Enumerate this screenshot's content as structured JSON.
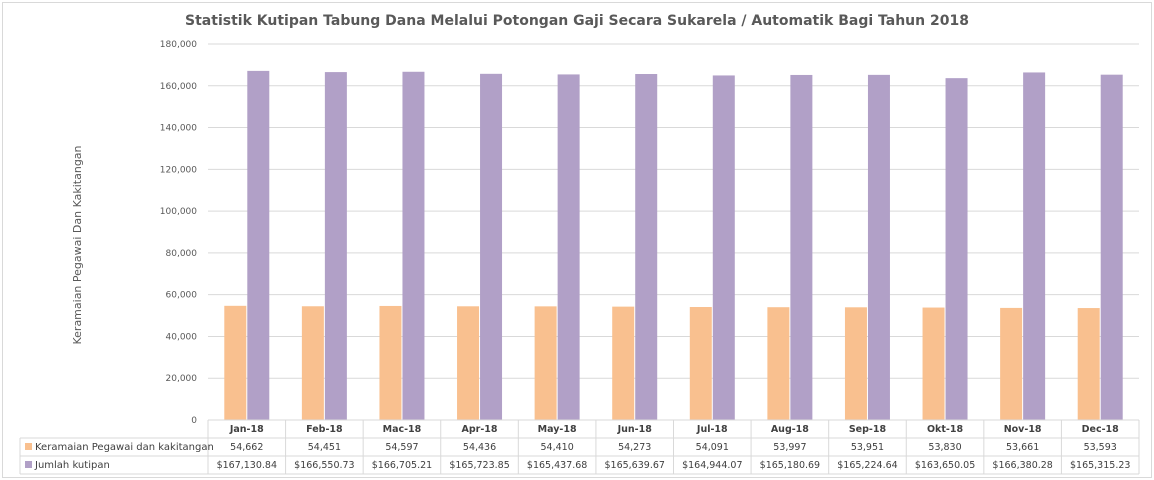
{
  "chart_data": {
    "type": "bar",
    "title": "Statistik Kutipan Tabung Dana Melalui Potongan Gaji Secara Sukarela / Automatik Bagi Tahun 2018",
    "ylabel": "Keramaian Pegawai Dan Kakitangan",
    "xlabel": "",
    "ylim": [
      0,
      180000
    ],
    "yticks": [
      0,
      20000,
      40000,
      60000,
      80000,
      100000,
      120000,
      140000,
      160000,
      180000
    ],
    "ytick_labels": [
      "0",
      "20,000",
      "40,000",
      "60,000",
      "80,000",
      "100,000",
      "120,000",
      "140,000",
      "160,000",
      "180,000"
    ],
    "grid": true,
    "legend": "data-table",
    "categories": [
      "Jan-18",
      "Feb-18",
      "Mac-18",
      "Apr-18",
      "May-18",
      "Jun-18",
      "Jul-18",
      "Aug-18",
      "Sep-18",
      "Okt-18",
      "Nov-18",
      "Dec-18"
    ],
    "series": [
      {
        "name": "Keramaian Pegawai dan kakitangan",
        "color": "#f9c08f",
        "values": [
          54662,
          54451,
          54597,
          54436,
          54410,
          54273,
          54091,
          53997,
          53951,
          53830,
          53661,
          53593
        ],
        "labels": [
          "54,662",
          "54,451",
          "54,597",
          "54,436",
          "54,410",
          "54,273",
          "54,091",
          "53,997",
          "53,951",
          "53,830",
          "53,661",
          "53,593"
        ]
      },
      {
        "name": "Jumlah kutipan",
        "color": "#b1a0c7",
        "values": [
          167130.84,
          166550.73,
          166705.21,
          165723.85,
          165437.68,
          165639.67,
          164944.07,
          165180.69,
          165224.64,
          163650.05,
          166380.28,
          165315.23
        ],
        "labels": [
          "$167,130.84",
          "$166,550.73",
          "$166,705.21",
          "$165,723.85",
          "$165,437.68",
          "$165,639.67",
          "$164,944.07",
          "$165,180.69",
          "$165,224.64",
          "$163,650.05",
          "$166,380.28",
          "$165,315.23"
        ]
      }
    ]
  }
}
